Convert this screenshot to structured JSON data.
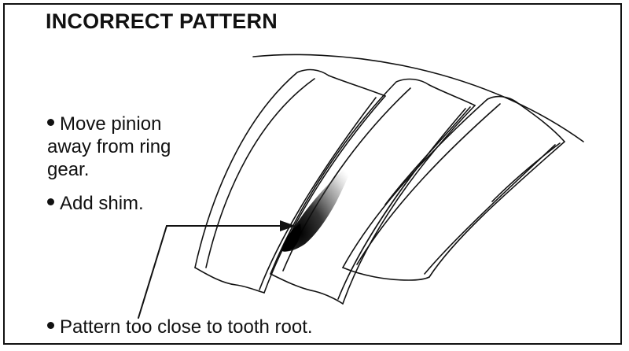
{
  "title": "INCORRECT PATTERN",
  "notes": {
    "line1": "Move pinion away from ring gear.",
    "line2": "Add shim.",
    "line3": "Pattern too close to tooth root."
  },
  "icons": {
    "bullet": "filled-circle",
    "arrow": "arrow-right"
  },
  "colors": {
    "ink": "#111111",
    "background": "#ffffff"
  }
}
